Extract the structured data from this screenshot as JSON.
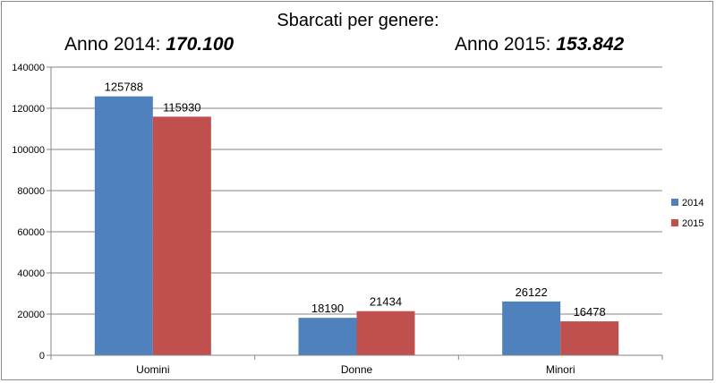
{
  "chart_data": {
    "type": "bar",
    "title": "Sbarcati per genere:",
    "subtitles": [
      {
        "label": "Anno 2014: ",
        "value": "170.100"
      },
      {
        "label": "Anno 2015: ",
        "value": "153.842"
      }
    ],
    "categories": [
      "Uomini",
      "Donne",
      "Minori"
    ],
    "series": [
      {
        "name": "2014",
        "values": [
          125788,
          18190,
          26122
        ],
        "color": "#4f81bd"
      },
      {
        "name": "2015",
        "values": [
          115930,
          21434,
          16478
        ],
        "color": "#c0504d"
      }
    ],
    "data_labels": true,
    "ylim": [
      0,
      140000
    ],
    "yticks": [
      0,
      20000,
      40000,
      60000,
      80000,
      100000,
      120000,
      140000
    ],
    "grid": true,
    "legend": "right",
    "xlabel": "",
    "ylabel": ""
  }
}
